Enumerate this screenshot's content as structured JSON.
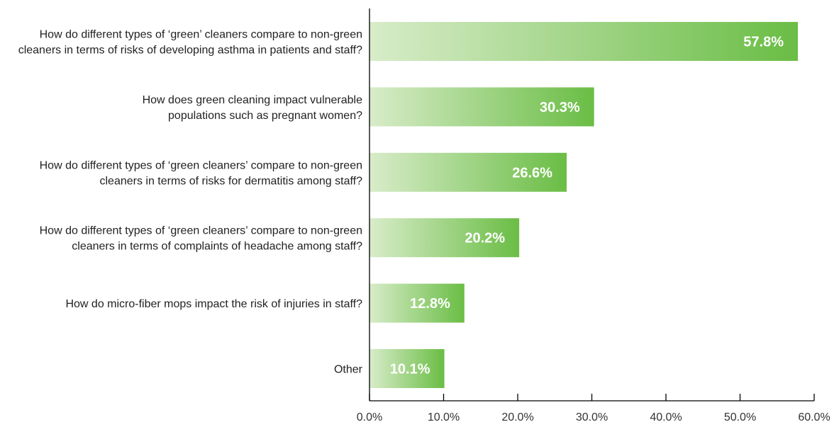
{
  "chart_data": {
    "type": "bar",
    "orientation": "horizontal",
    "categories": [
      [
        "How do different types of ‘green’ cleaners compare to non-green",
        "cleaners in terms of risks of developing asthma in patients and staff?"
      ],
      [
        "How does green cleaning impact vulnerable",
        "populations such as pregnant women?"
      ],
      [
        "How do different types of ‘green cleaners’ compare to non-green",
        "cleaners in terms of risks for dermatitis among staff?"
      ],
      [
        "How do different types of ‘green cleaners’ compare to non-green",
        "cleaners in terms of complaints of headache among staff?"
      ],
      [
        "How do micro-fiber mops impact the risk of injuries in staff?"
      ],
      [
        "Other"
      ]
    ],
    "values": [
      57.8,
      30.3,
      26.6,
      20.2,
      12.8,
      10.1
    ],
    "value_labels": [
      "57.8%",
      "30.3%",
      "26.6%",
      "20.2%",
      "12.8%",
      "10.1%"
    ],
    "xlim": [
      0,
      60
    ],
    "x_ticks": [
      0,
      10,
      20,
      30,
      40,
      50,
      60
    ],
    "x_tick_labels": [
      "0.0%",
      "10.0%",
      "20.0%",
      "30.0%",
      "40.0%",
      "50.0%",
      "60.0%"
    ],
    "grid": false,
    "legend": "none",
    "colors": {
      "bar_gradient_start": "#d8ecc9",
      "bar_gradient_end": "#6abd45",
      "value_text": "#ffffff"
    }
  }
}
